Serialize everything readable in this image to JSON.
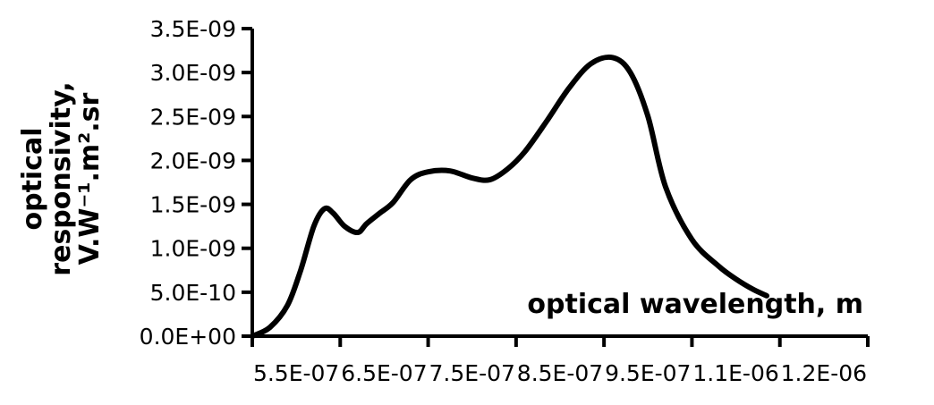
{
  "chart_data": {
    "type": "line",
    "xlabel": "optical wavelength, m",
    "ylabel_lines": [
      "optical",
      "responsivity,",
      "V.W⁻¹.m².sr"
    ],
    "x_ticks": [
      "5.5E-07",
      "6.5E-07",
      "7.5E-07",
      "8.5E-07",
      "9.5E-07",
      "1.1E-06",
      "1.2E-06"
    ],
    "y_ticks": [
      "0.0E+00",
      "5.0E-10",
      "1.0E-09",
      "1.5E-09",
      "2.0E-09",
      "2.5E-09",
      "3.0E-09",
      "3.5E-09"
    ],
    "xlim": [
      5.5e-07,
      1.25e-06
    ],
    "ylim": [
      0,
      3.5e-09
    ],
    "grid": false,
    "legend": "none",
    "series": [
      {
        "color": "#000000",
        "x": [
          5.5e-07,
          5.7e-07,
          5.9e-07,
          6.05e-07,
          6.2e-07,
          6.32e-07,
          6.42e-07,
          6.55e-07,
          6.7e-07,
          6.8e-07,
          6.95e-07,
          7.1e-07,
          7.3e-07,
          7.5e-07,
          7.75e-07,
          8e-07,
          8.2e-07,
          8.4e-07,
          8.6e-07,
          8.85e-07,
          9.1e-07,
          9.35e-07,
          9.6e-07,
          9.8e-07,
          1e-06,
          1.02e-06,
          1.05e-06,
          1.08e-06,
          1.1e-06,
          1.12e-06,
          1.135e-06
        ],
        "y": [
          0.0,
          1e-10,
          3.5e-10,
          7.5e-10,
          1.25e-09,
          1.45e-09,
          1.4e-09,
          1.25e-09,
          1.18e-09,
          1.28e-09,
          1.4e-09,
          1.52e-09,
          1.78e-09,
          1.87e-09,
          1.88e-09,
          1.8e-09,
          1.78e-09,
          1.9e-09,
          2.1e-09,
          2.45e-09,
          2.82e-09,
          3.1e-09,
          3.17e-09,
          3e-09,
          2.5e-09,
          1.7e-09,
          1.1e-09,
          8e-10,
          6.5e-10,
          5.3e-10,
          4.6e-10
        ]
      }
    ]
  }
}
